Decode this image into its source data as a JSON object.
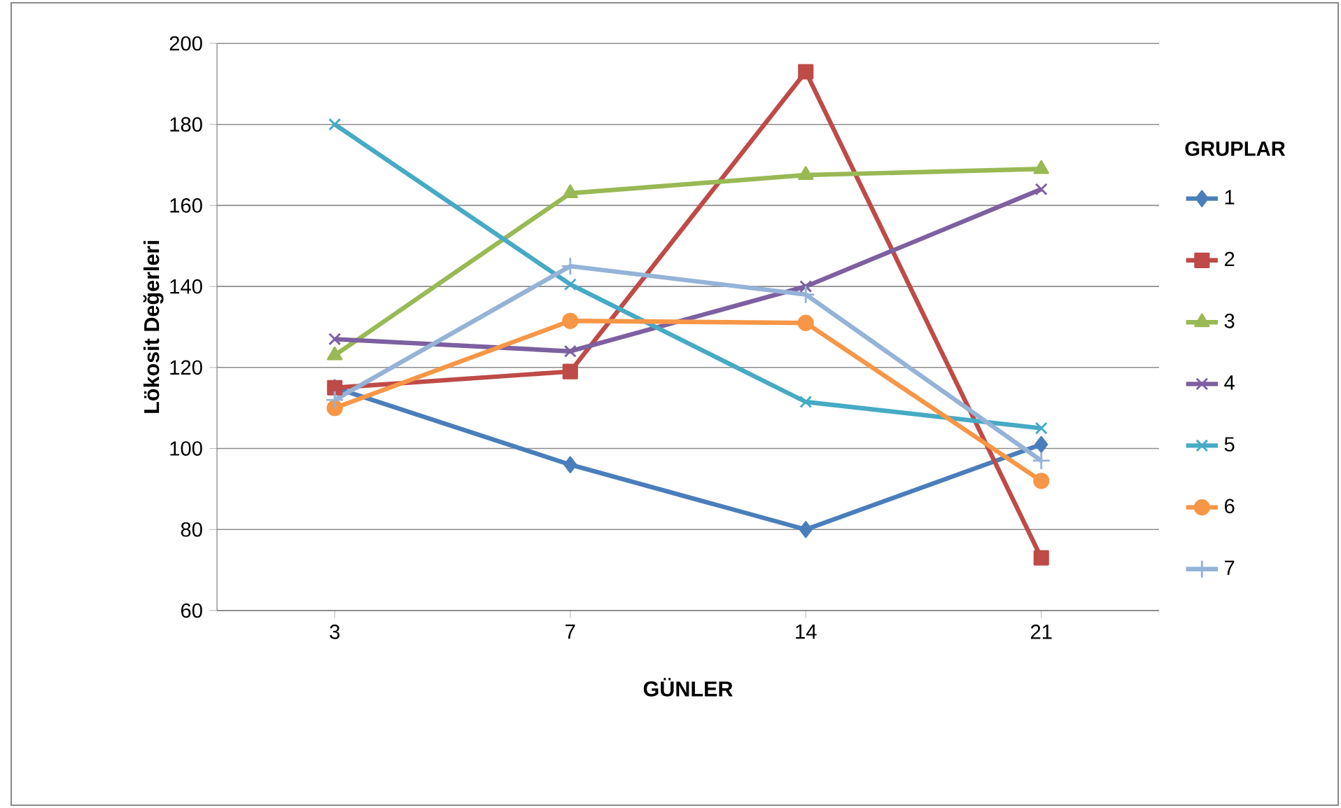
{
  "chart_data": {
    "type": "line",
    "xlabel": "GÜNLER",
    "ylabel": "Lökosit Değerleri",
    "legend_title": "GRUPLAR",
    "categories": [
      "3",
      "7",
      "14",
      "21"
    ],
    "series": [
      {
        "name": "1",
        "color": "#4a7ebb",
        "marker": "diamond",
        "values": [
          115,
          96,
          80,
          101
        ]
      },
      {
        "name": "2",
        "color": "#be4b48",
        "marker": "square",
        "values": [
          115,
          119,
          193,
          73
        ]
      },
      {
        "name": "3",
        "color": "#98b954",
        "marker": "triangle",
        "values": [
          123,
          163,
          167.5,
          169
        ]
      },
      {
        "name": "4",
        "color": "#7d60a0",
        "marker": "cross",
        "values": [
          127,
          124,
          140,
          164
        ]
      },
      {
        "name": "5",
        "color": "#46aac5",
        "marker": "cross",
        "values": [
          180,
          140.5,
          111.5,
          105
        ]
      },
      {
        "name": "6",
        "color": "#f79646",
        "marker": "circle",
        "values": [
          110,
          131.5,
          131,
          92
        ]
      },
      {
        "name": "7",
        "color": "#95b3d7",
        "marker": "plus",
        "values": [
          112,
          145,
          138,
          97
        ]
      }
    ],
    "ylim": [
      60,
      200
    ],
    "yticks": [
      60,
      80,
      100,
      120,
      140,
      160,
      180,
      200
    ],
    "grid": "y",
    "legend": "right"
  }
}
